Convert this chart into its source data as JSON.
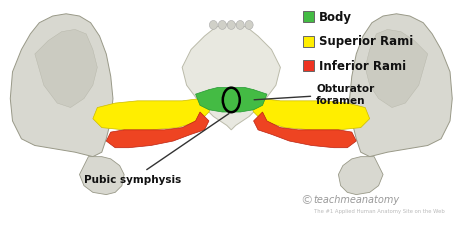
{
  "bg_color": "#ffffff",
  "legend_items": [
    {
      "label": "Body",
      "color": "#44bb44"
    },
    {
      "label": "Superior Rami",
      "color": "#ffee00"
    },
    {
      "label": "Inferior Rami",
      "color": "#ee3322"
    }
  ],
  "annotation_obturator": "Obturator\nforamen",
  "annotation_pubic": "Pubic symphysis",
  "watermark": "teachmeanatomy",
  "watermark_sub": "The #1 Applied Human Anatomy Site on the Web",
  "legend_fontsize": 8.5,
  "body_color": "#44bb44",
  "superior_color": "#ffee00",
  "inferior_color": "#ee4422",
  "bone_color_light": "#d8d8d0",
  "bone_color_dark": "#b8b8a8",
  "bone_edge": "#999988",
  "sacrum_color": "#e8e8e0"
}
